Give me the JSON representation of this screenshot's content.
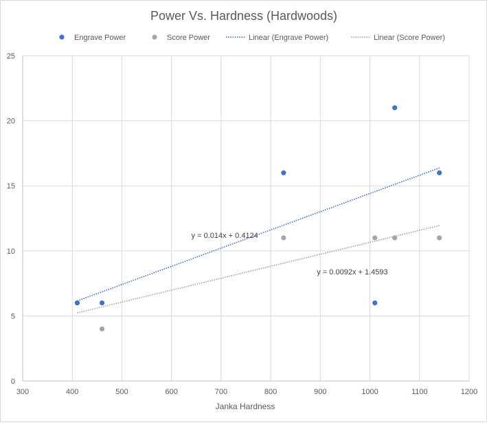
{
  "chart_data": {
    "type": "scatter",
    "title": "Power Vs. Hardness (Hardwoods)",
    "xlabel": "Janka Hardness",
    "ylabel": "",
    "xlim": [
      300,
      1200
    ],
    "ylim": [
      0,
      25
    ],
    "x_ticks": [
      300,
      400,
      500,
      600,
      700,
      800,
      900,
      1000,
      1100,
      1200
    ],
    "y_ticks": [
      0,
      5,
      10,
      15,
      20,
      25
    ],
    "grid": true,
    "legend_position": "top",
    "series": [
      {
        "name": "Engrave Power",
        "color": "#4472c4",
        "x": [
          410,
          460,
          826,
          1010,
          1050,
          1140
        ],
        "y": [
          6,
          6,
          16,
          6,
          21,
          16
        ]
      },
      {
        "name": "Score Power",
        "color": "#a5a5a5",
        "x": [
          410,
          460,
          826,
          1010,
          1050,
          1140
        ],
        "y": [
          6,
          4,
          11,
          11,
          11,
          11
        ]
      }
    ],
    "trendlines": [
      {
        "name": "Linear (Engrave Power)",
        "color": "#4472c4",
        "slope": 0.014,
        "intercept": 0.4124,
        "x_range": [
          410,
          1140
        ],
        "equation": "y = 0.014x + 0.4124",
        "equation_anchor": [
          640,
          11.2
        ]
      },
      {
        "name": "Linear (Score Power)",
        "color": "#a5a5a5",
        "slope": 0.0092,
        "intercept": 1.4593,
        "x_range": [
          410,
          1140
        ],
        "equation": "y = 0.0092x + 1.4593",
        "equation_anchor": [
          893,
          8.4
        ]
      }
    ]
  }
}
